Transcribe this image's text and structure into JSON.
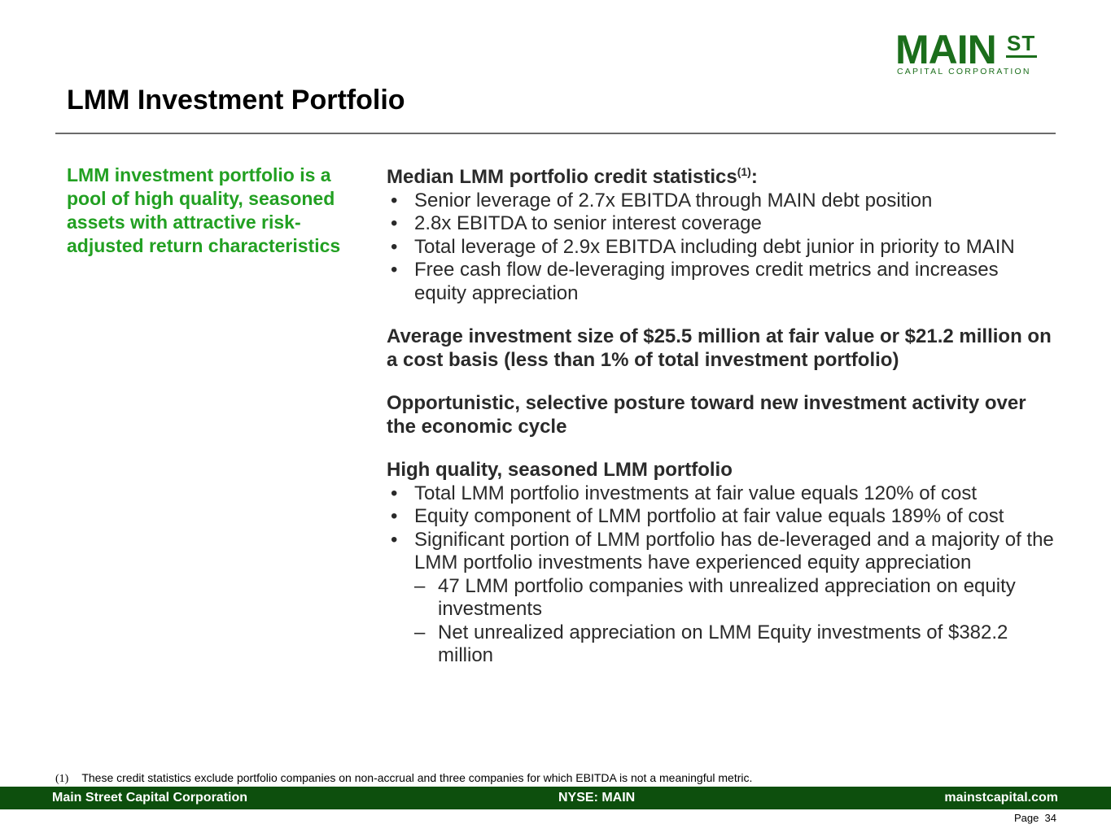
{
  "logo": {
    "main": "MAIN",
    "superscript": "ST",
    "subtitle": "CAPITAL CORPORATION",
    "color": "#1b6e1b"
  },
  "page_title": "LMM Investment Portfolio",
  "callout": "LMM investment portfolio is a pool of high quality, seasoned assets with attractive risk-adjusted return characteristics",
  "sections": {
    "credit_stats": {
      "heading": "Median LMM portfolio credit statistics",
      "heading_sup": "(1)",
      "heading_suffix": ":",
      "bullets": [
        "Senior leverage of 2.7x EBITDA through MAIN debt position",
        "2.8x EBITDA to senior interest coverage",
        "Total leverage of 2.9x EBITDA including debt junior in priority to MAIN",
        "Free cash flow de-leveraging improves credit metrics and increases equity appreciation"
      ]
    },
    "avg_investment": "Average investment size of $25.5 million at fair value or $21.2 million on a cost basis (less than 1% of total investment portfolio)",
    "posture": "Opportunistic, selective posture toward new investment activity over the economic cycle",
    "quality": {
      "heading": "High quality, seasoned LMM portfolio",
      "bullets": [
        "Total LMM portfolio investments at fair value equals 120% of cost",
        "Equity component of LMM portfolio at fair value equals 189% of cost",
        "Significant portion of LMM portfolio has de-leveraged and a majority of the LMM portfolio investments have experienced equity appreciation"
      ],
      "sub_bullets": [
        "47 LMM portfolio companies with unrealized appreciation on equity investments",
        "Net unrealized appreciation on LMM Equity investments of $382.2 million"
      ]
    }
  },
  "footnote": {
    "mark": "(1)",
    "text": "These credit statistics exclude portfolio companies on non-accrual and three companies for which EBITDA is not a meaningful metric."
  },
  "footer": {
    "left": "Main Street Capital Corporation",
    "center": "NYSE: MAIN",
    "right": "mainstcapital.com",
    "bar_color": "#0d4f0d"
  },
  "page_label": "Page  34"
}
